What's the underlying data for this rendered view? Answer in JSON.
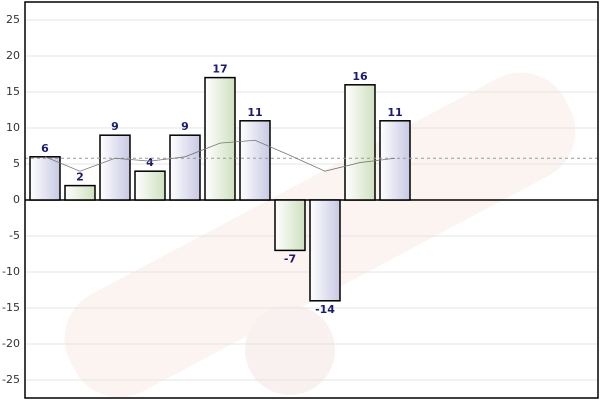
{
  "chart_data": {
    "type": "bar",
    "values": [
      6,
      2,
      9,
      4,
      9,
      17,
      11,
      -7,
      -14,
      16,
      11
    ],
    "colors": [
      "#dcdcee",
      "#dde8d2"
    ],
    "trend": {
      "values": [
        6,
        4,
        5.8,
        5.4,
        6,
        7.9,
        8.3,
        6.2,
        4,
        5.2,
        5.8
      ],
      "color": "#777777"
    },
    "average": 5.8,
    "ylim": [
      -27.5,
      27.5
    ],
    "yticks": [
      -25,
      -20,
      -15,
      -10,
      -5,
      0,
      5,
      10,
      15,
      20,
      25
    ],
    "grid": true
  }
}
